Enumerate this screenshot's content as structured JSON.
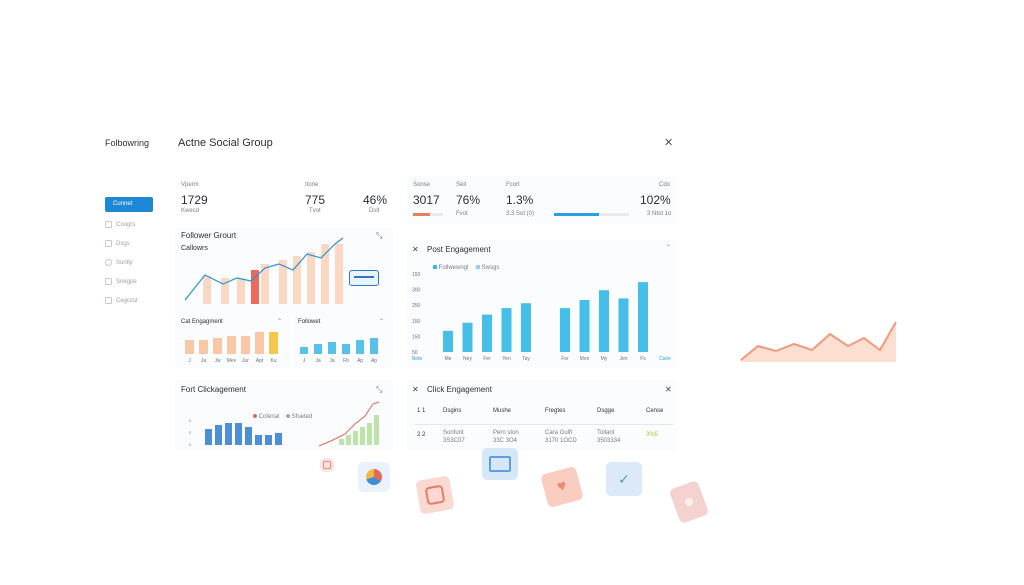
{
  "sidebar": {
    "title": "Folbowring",
    "items": [
      {
        "label": "Cunnet",
        "active": true
      },
      {
        "label": "Cougrs"
      },
      {
        "label": "Dsgs"
      },
      {
        "label": "Suntly"
      },
      {
        "label": "Snegpe"
      },
      {
        "label": "Cegccst"
      }
    ]
  },
  "header": {
    "title": "Actne Social Group",
    "close_icon": "close-icon"
  },
  "stats_left": [
    {
      "label": "Vperm",
      "value": "1729",
      "sub": "Kwecd"
    },
    {
      "label": "Itone",
      "value": "775",
      "sub": "Tvot"
    },
    {
      "label": "",
      "value": "46%",
      "sub": "Dslt"
    }
  ],
  "stats_right": [
    {
      "label": "Sonse",
      "value": "3017"
    },
    {
      "label": "Seit",
      "value": "76%",
      "sub": "Fvot"
    },
    {
      "label": "Fcort",
      "value": "1.3%",
      "sub": "3.3 Sot (0)"
    },
    {
      "label": "Cdo",
      "value": "102%",
      "sub": "3 Ntot 1o"
    }
  ],
  "follower_growth": {
    "title": "Follower Grourt",
    "subtitle": "Callowrs",
    "tooltip": "-------"
  },
  "cat_engagement": {
    "title": "Cat Engagment",
    "categories": [
      "J",
      "Ja",
      "Jw",
      "Mev",
      "Jur",
      "Apt",
      "Ku"
    ]
  },
  "follower_small": {
    "title": "Followet",
    "categories": [
      "J",
      "Ja",
      "Ja",
      "Fb",
      "Ap",
      "Ap"
    ]
  },
  "post_engagement": {
    "title": "Post Engagement",
    "legend": [
      "Follwewngl",
      "Swsgs"
    ],
    "ylabels": [
      "150",
      "300",
      "250",
      "150",
      "150",
      "50"
    ],
    "categories": [
      "Note",
      "Me",
      "Ney",
      "Fer",
      "Yen",
      "Tay",
      "",
      "Fer",
      "Mon",
      "My",
      "Jen",
      "Fs",
      "Cave"
    ]
  },
  "click_panel": {
    "title": "Fort Clickagement",
    "legend": [
      "Cotenal",
      "Sfueted"
    ],
    "ylabels": [
      "E",
      "E",
      "E"
    ]
  },
  "click_table": {
    "title": "Click Engagement",
    "headers": [
      "1 1",
      "Dsgins",
      "Mushe",
      "Fregtes",
      "Dsgge",
      "Cense"
    ],
    "rows": [
      [
        "2 2",
        "Sonfunt\n3S3C07",
        "Pern ston\n33C 3O4",
        "Cara Gulft\n3170 1OCD",
        "Tollant\n3503334",
        "3%5"
      ]
    ]
  },
  "chart_data": [
    {
      "type": "bar",
      "title": "Post Engagement",
      "categories": [
        "Me",
        "Ney",
        "Fer",
        "Yen",
        "Tay",
        "",
        "Fer",
        "Mon",
        "My",
        "Jen",
        "Fs"
      ],
      "series": [
        {
          "name": "Follwewngl",
          "values": [
            65,
            90,
            115,
            135,
            150,
            0,
            135,
            160,
            190,
            165,
            215
          ]
        }
      ],
      "ylim": [
        0,
        300
      ]
    }
  ]
}
